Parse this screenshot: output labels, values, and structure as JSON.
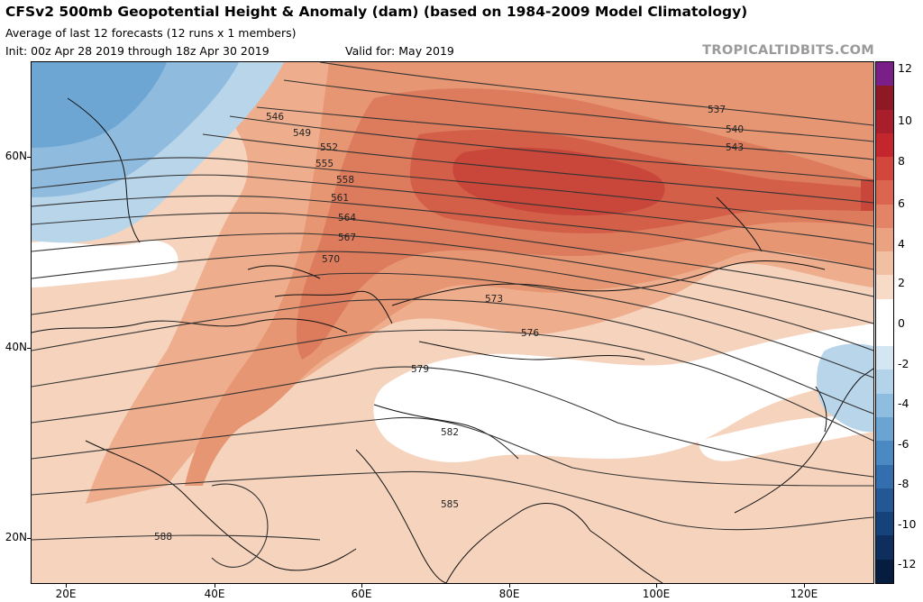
{
  "header": {
    "title": "CFSv2 500mb Geopotential Height & Anomaly (dam) (based on 1984-2009 Model Climatology)",
    "subtitle": "Average of last 12 forecasts (12 runs x 1 members)",
    "init": "Init: 00z Apr 28 2019 through 18z Apr 30 2019",
    "valid": "Valid for: May 2019",
    "watermark": "TROPICALTIDBITS.COM"
  },
  "map": {
    "lat_labels": [
      "60N",
      "40N",
      "20N"
    ],
    "lon_labels": [
      "20E",
      "40E",
      "60E",
      "80E",
      "100E",
      "120E"
    ],
    "contour_labels": [
      "537",
      "540",
      "543",
      "546",
      "549",
      "552",
      "555",
      "558",
      "561",
      "564",
      "567",
      "570",
      "573",
      "576",
      "579",
      "582",
      "585",
      "588"
    ]
  },
  "colorbar": {
    "labels": [
      "12",
      "10",
      "8",
      "6",
      "4",
      "2",
      "0",
      "-2",
      "-4",
      "-6",
      "-8",
      "-10",
      "-12"
    ],
    "colors": [
      "#7a1e88",
      "#8e1824",
      "#a81e2a",
      "#c3272d",
      "#d2463b",
      "#dc6550",
      "#e38466",
      "#eaa281",
      "#f1c0a2",
      "#f7dbc7",
      "#ffffff",
      "#ffffff",
      "#d4e6f2",
      "#b3d3ea",
      "#8fbde0",
      "#6aa4d2",
      "#4a89c1",
      "#336fae",
      "#235895",
      "#16427a",
      "#0e2f5e",
      "#071d40"
    ]
  }
}
